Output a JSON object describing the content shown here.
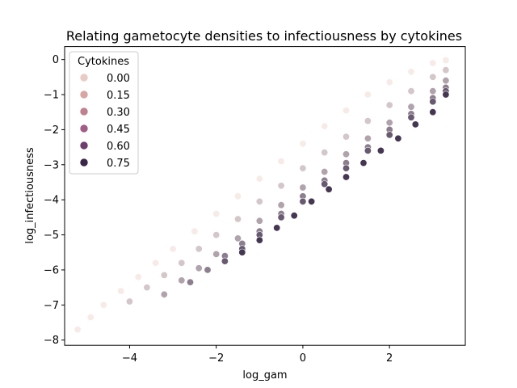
{
  "chart_data": {
    "type": "scatter",
    "title": "Relating gametocyte densities to infectiousness by cytokines",
    "xlabel": "log_gam",
    "ylabel": "log_infectiousness",
    "xlim": [
      -5.5,
      3.75
    ],
    "ylim": [
      -8.15,
      0.37
    ],
    "x_ticks": [
      -4,
      -2,
      0,
      2
    ],
    "x_tick_labels": [
      "−4",
      "−2",
      "0",
      "2"
    ],
    "y_ticks": [
      0,
      -1,
      -2,
      -3,
      -4,
      -5,
      -6,
      -7,
      -8
    ],
    "y_tick_labels": [
      "0",
      "−1",
      "−2",
      "−3",
      "−4",
      "−5",
      "−6",
      "−7",
      "−8"
    ],
    "grid": false,
    "hue_variable": "Cytokines",
    "hue_range": [
      0,
      0.85
    ],
    "color_low": "#f7ebe8",
    "color_high": "#2d1e3e",
    "legend": {
      "title": "Cytokines",
      "placement": "top-left",
      "entries": [
        {
          "label": "0.00",
          "value": 0.0,
          "color": "#e8cbc4"
        },
        {
          "label": "0.15",
          "value": 0.15,
          "color": "#d8a5a3"
        },
        {
          "label": "0.30",
          "value": 0.3,
          "color": "#c0808f"
        },
        {
          "label": "0.45",
          "value": 0.45,
          "color": "#a15d86"
        },
        {
          "label": "0.60",
          "value": 0.6,
          "color": "#6f3e6e"
        },
        {
          "label": "0.75",
          "value": 0.75,
          "color": "#3b2549"
        }
      ]
    },
    "series": [
      {
        "cytokines": 0.0,
        "x": [
          -5.2,
          -4.9,
          -4.6,
          -4.2,
          -3.8,
          -3.4,
          -3.0,
          -2.5,
          -2.0,
          -1.5,
          -1.0,
          -0.5,
          0.0,
          0.5,
          1.0,
          1.5,
          2.0,
          2.5,
          3.0,
          3.3
        ],
        "y": [
          -7.7,
          -7.35,
          -7.0,
          -6.6,
          -6.2,
          -5.8,
          -5.4,
          -4.9,
          -4.4,
          -3.9,
          -3.4,
          -2.9,
          -2.4,
          -1.9,
          -1.45,
          -1.0,
          -0.65,
          -0.35,
          -0.1,
          -0.02
        ]
      },
      {
        "cytokines": 0.15,
        "x": [
          -4.0,
          -3.6,
          -3.2,
          -2.8,
          -2.4,
          -2.0,
          -1.5,
          -1.0,
          -0.5,
          0.0,
          0.5,
          1.0,
          1.5,
          2.0,
          2.5,
          3.0,
          3.3
        ],
        "y": [
          -6.9,
          -6.5,
          -6.15,
          -5.8,
          -5.4,
          -5.0,
          -4.55,
          -4.05,
          -3.6,
          -3.1,
          -2.65,
          -2.2,
          -1.75,
          -1.3,
          -0.9,
          -0.5,
          -0.3
        ]
      },
      {
        "cytokines": 0.3,
        "x": [
          -3.2,
          -2.8,
          -2.4,
          -2.0,
          -1.5,
          -1.0,
          -0.5,
          0.0,
          0.5,
          1.0,
          1.5,
          2.0,
          2.5,
          3.0,
          3.3
        ],
        "y": [
          -6.7,
          -6.3,
          -5.95,
          -5.55,
          -5.1,
          -4.6,
          -4.15,
          -3.65,
          -3.2,
          -2.7,
          -2.25,
          -1.8,
          -1.35,
          -0.9,
          -0.6
        ]
      },
      {
        "cytokines": 0.45,
        "x": [
          -2.6,
          -2.2,
          -1.8,
          -1.4,
          -1.0,
          -0.5,
          0.0,
          0.5,
          1.0,
          1.5,
          2.0,
          2.5,
          3.0,
          3.3
        ],
        "y": [
          -6.35,
          -6.0,
          -5.6,
          -5.25,
          -4.9,
          -4.4,
          -3.9,
          -3.45,
          -2.95,
          -2.5,
          -2.0,
          -1.55,
          -1.1,
          -0.8
        ]
      },
      {
        "cytokines": 0.6,
        "x": [
          -1.8,
          -1.4,
          -1.0,
          -0.5,
          0.0,
          0.5,
          1.0,
          1.5,
          2.0,
          2.5,
          3.0,
          3.3
        ],
        "y": [
          -5.75,
          -5.4,
          -5.0,
          -4.5,
          -4.05,
          -3.55,
          -3.1,
          -2.6,
          -2.15,
          -1.65,
          -1.2,
          -0.9
        ]
      },
      {
        "cytokines": 0.75,
        "x": [
          -1.4,
          -1.0,
          -0.6,
          -0.2,
          0.2,
          0.6,
          1.0,
          1.4,
          1.8,
          2.2,
          2.6,
          3.0,
          3.3
        ],
        "y": [
          -5.5,
          -5.15,
          -4.8,
          -4.45,
          -4.05,
          -3.7,
          -3.35,
          -2.95,
          -2.6,
          -2.25,
          -1.85,
          -1.5,
          -1.0
        ]
      }
    ]
  }
}
